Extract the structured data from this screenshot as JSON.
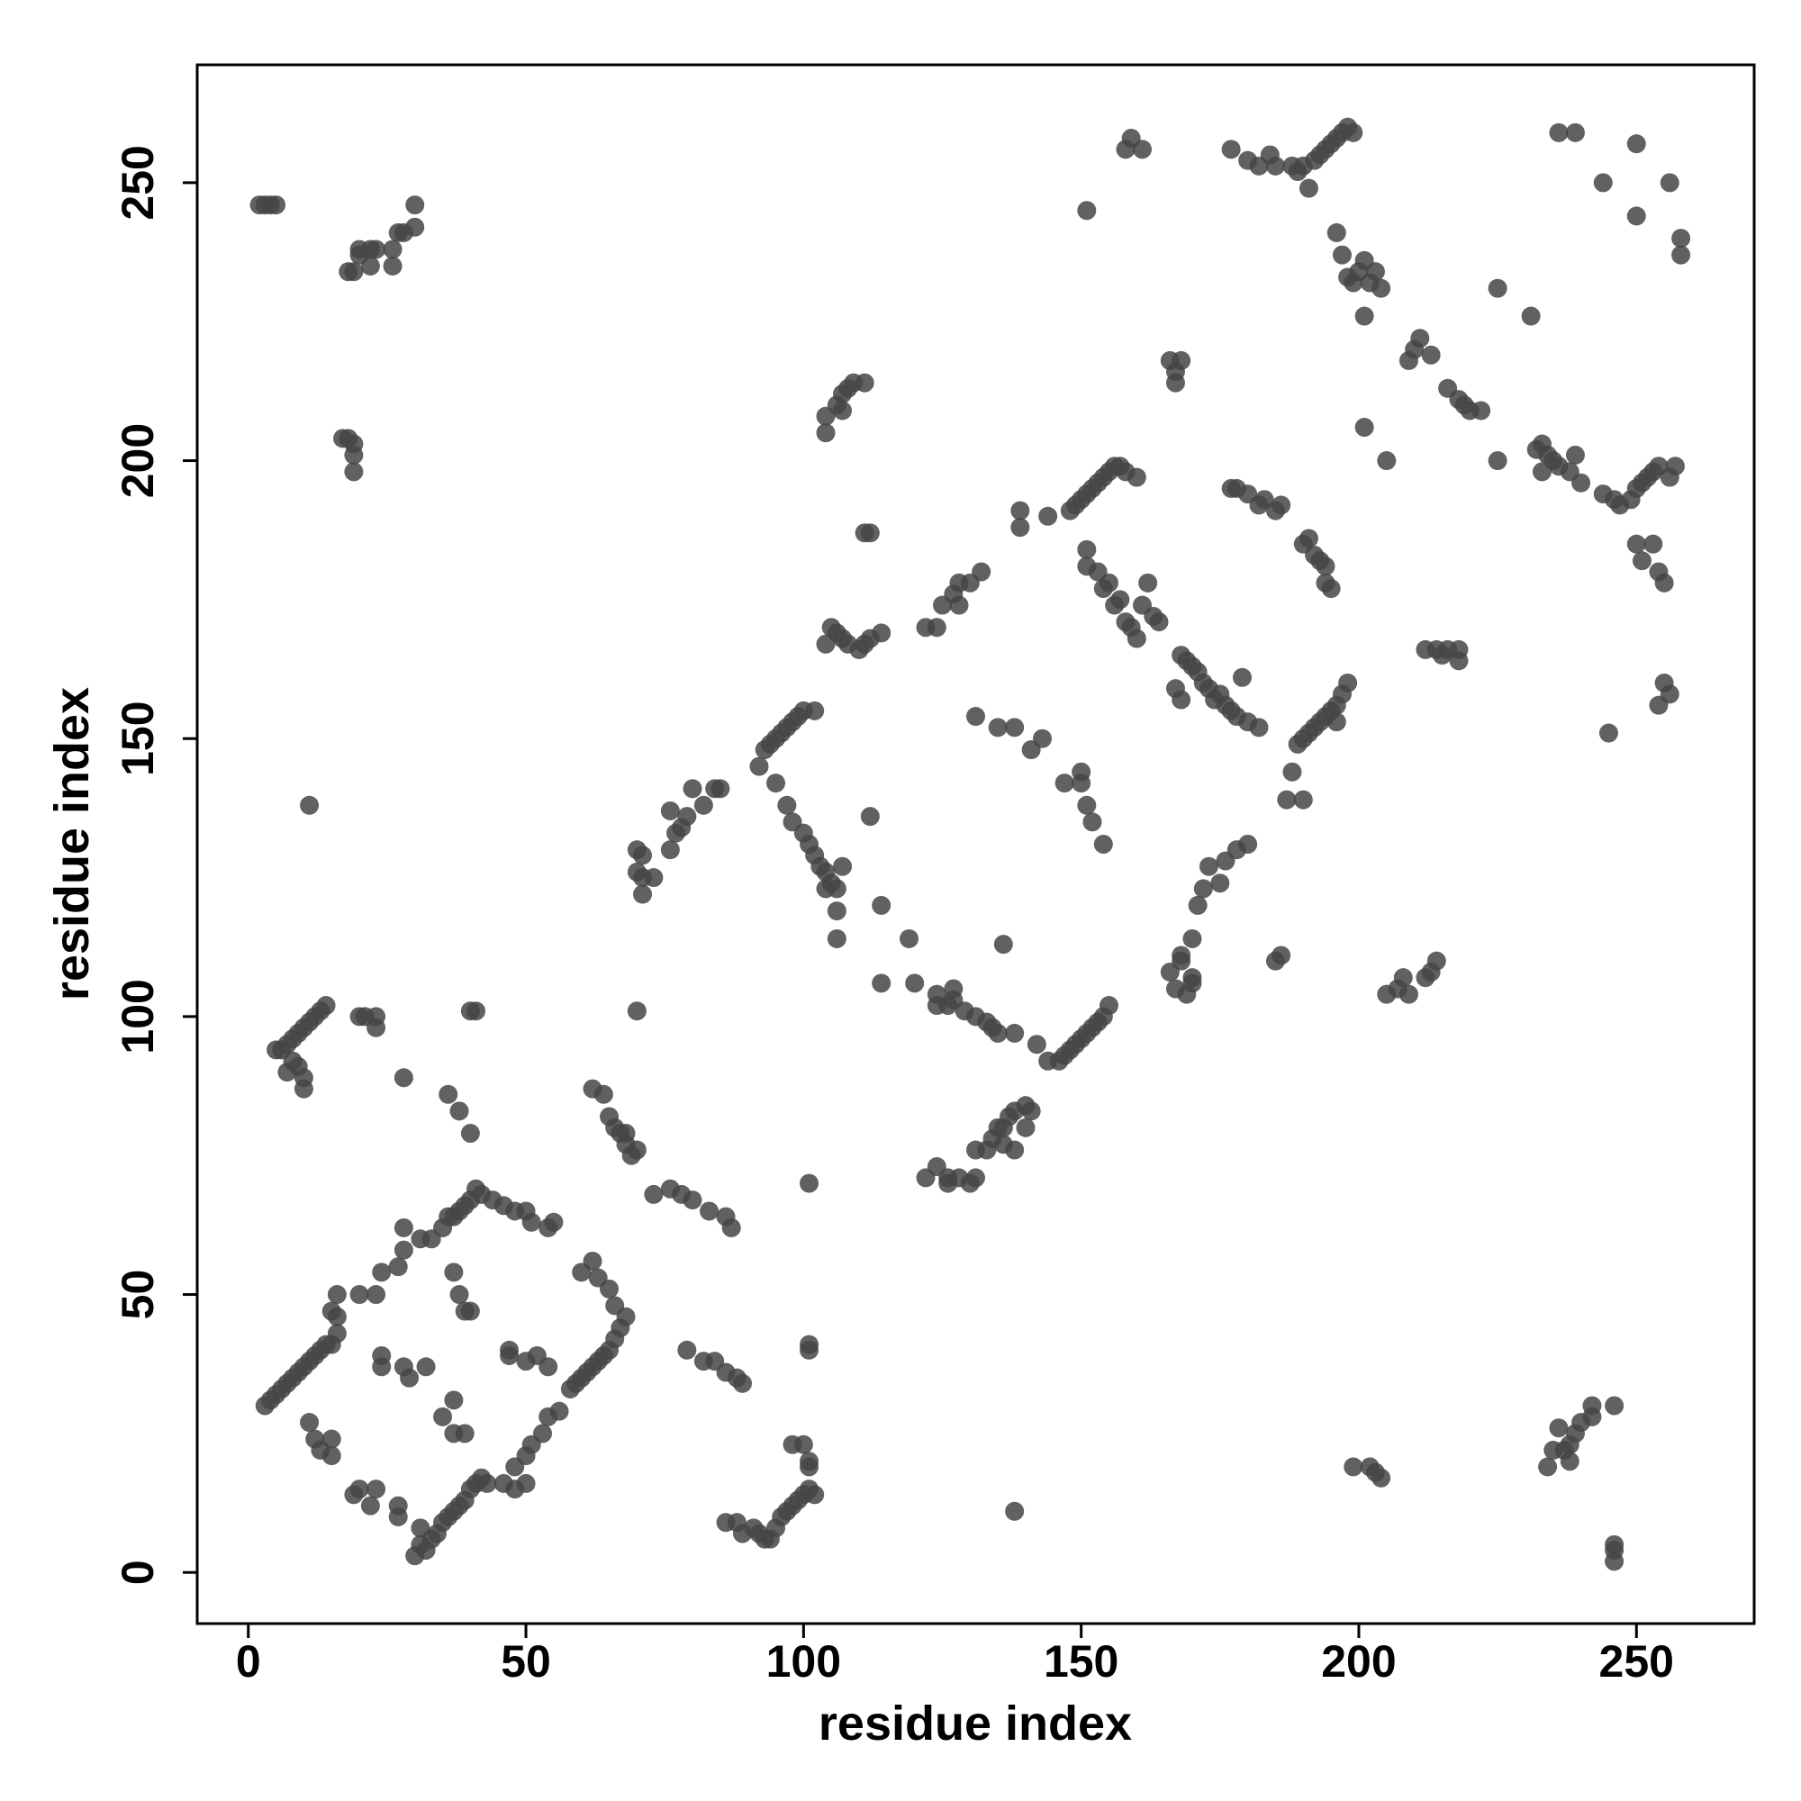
{
  "chart_data": {
    "type": "scatter",
    "x_label": "residue index",
    "y_label": "residue index",
    "color": "#454545",
    "xlim": [
      -9.2,
      271.2
    ],
    "ylim": [
      -9.2,
      271.2
    ],
    "xticks": [
      0,
      50,
      100,
      150,
      200,
      250
    ],
    "yticks": [
      0,
      50,
      100,
      150,
      200,
      250
    ],
    "grid": false,
    "x": [
      2,
      3,
      4,
      5,
      18,
      19,
      20,
      20,
      22,
      22,
      23,
      26,
      26,
      27,
      28,
      30,
      30,
      17,
      18,
      19,
      19,
      19,
      11,
      20,
      21,
      23,
      23,
      14,
      13,
      12,
      11,
      10,
      9,
      8,
      7,
      6,
      5,
      8,
      9,
      10,
      10,
      7,
      3,
      4,
      5,
      6,
      7,
      8,
      9,
      10,
      11,
      12,
      13,
      14,
      15,
      16,
      16,
      16,
      15,
      11,
      12,
      13,
      15,
      15,
      19,
      20,
      22,
      23,
      27,
      27,
      30,
      31,
      31,
      32,
      33,
      34,
      35,
      36,
      37,
      38,
      39,
      40,
      41,
      42,
      43,
      46,
      48,
      50,
      50,
      51,
      53,
      54,
      56,
      58,
      59,
      60,
      61,
      62,
      63,
      64,
      65,
      66,
      67,
      68,
      66,
      65,
      63,
      62,
      60,
      20,
      23,
      24,
      27,
      28,
      28,
      31,
      33,
      35,
      36,
      37,
      38,
      39,
      40,
      41,
      42,
      44,
      46,
      48,
      50,
      51,
      54,
      55,
      24,
      24,
      28,
      29,
      32,
      35,
      37,
      37,
      39,
      37,
      38,
      39,
      40,
      47,
      47,
      50,
      52,
      54,
      48,
      28,
      36,
      38,
      40,
      40,
      41,
      62,
      64,
      65,
      66,
      67,
      68,
      69,
      68,
      70,
      73,
      76,
      78,
      80,
      83,
      86,
      87,
      79,
      82,
      84,
      86,
      88,
      89,
      101,
      101,
      70,
      101,
      86,
      88,
      89,
      91,
      92,
      93,
      94,
      95,
      96,
      97,
      98,
      99,
      100,
      101,
      102,
      98,
      100,
      101,
      101,
      138,
      70,
      71,
      70,
      71,
      73,
      71,
      76,
      77,
      76,
      78,
      79,
      80,
      82,
      84,
      85,
      92,
      93,
      94,
      95,
      96,
      97,
      98,
      99,
      100,
      102,
      95,
      97,
      98,
      100,
      101,
      102,
      103,
      104,
      105,
      106,
      106,
      106,
      104,
      107,
      104,
      105,
      106,
      107,
      108,
      110,
      111,
      112,
      114,
      104,
      104,
      106,
      107,
      108,
      109,
      111,
      111,
      112,
      107,
      112,
      114,
      114,
      119,
      120,
      122,
      124,
      125,
      127,
      128,
      130,
      132,
      128,
      122,
      124,
      126,
      126,
      128,
      130,
      131,
      131,
      133,
      134,
      135,
      136,
      137,
      138,
      140,
      141,
      140,
      136,
      138,
      124,
      124,
      126,
      127,
      127,
      129,
      131,
      133,
      134,
      135,
      138,
      142,
      144,
      146,
      147,
      148,
      149,
      150,
      151,
      152,
      153,
      154,
      155,
      136,
      131,
      135,
      138,
      141,
      143,
      147,
      150,
      150,
      151,
      152,
      154,
      139,
      139,
      144,
      148,
      149,
      150,
      151,
      152,
      153,
      154,
      155,
      156,
      157,
      158,
      160,
      158,
      159,
      161,
      151,
      151,
      151,
      153,
      154,
      155,
      156,
      157,
      158,
      159,
      160,
      161,
      162,
      163,
      164,
      166,
      167,
      167,
      168,
      168,
      169,
      170,
      171,
      172,
      173,
      174,
      175,
      176,
      177,
      178,
      180,
      182,
      167,
      168,
      179,
      166,
      167,
      168,
      169,
      170,
      170,
      171,
      172,
      173,
      175,
      176,
      178,
      180,
      168,
      170,
      185,
      186,
      187,
      190,
      188,
      189,
      190,
      191,
      192,
      193,
      194,
      195,
      196,
      197,
      198,
      196,
      177,
      178,
      180,
      182,
      183,
      185,
      186,
      190,
      191,
      192,
      193,
      194,
      195,
      194,
      177,
      180,
      182,
      184,
      185,
      188,
      189,
      190,
      191,
      192,
      193,
      194,
      195,
      196,
      197,
      198,
      199,
      196,
      197,
      198,
      199,
      200,
      201,
      202,
      203,
      204,
      201,
      201,
      205,
      205,
      207,
      208,
      209,
      212,
      213,
      214,
      212,
      214,
      215,
      216,
      218,
      218,
      209,
      210,
      211,
      213,
      216,
      218,
      219,
      220,
      222,
      225,
      225,
      231,
      199,
      202,
      203,
      204,
      234,
      235,
      236,
      237,
      238,
      239,
      240,
      242,
      242,
      246,
      246,
      246,
      246,
      238,
      232,
      233,
      234,
      235,
      236,
      238,
      239,
      240,
      244,
      246,
      247,
      249,
      250,
      251,
      252,
      253,
      254,
      256,
      257,
      250,
      251,
      253,
      254,
      255,
      244,
      245,
      250,
      250,
      254,
      255,
      256,
      256,
      258,
      258,
      239,
      236,
      233
    ],
    "values": [
      246,
      246,
      246,
      246,
      234,
      234,
      237,
      238,
      235,
      238,
      238,
      235,
      238,
      241,
      241,
      242,
      246,
      204,
      204,
      203,
      201,
      198,
      138,
      100,
      100,
      100,
      98,
      102,
      101,
      100,
      99,
      98,
      97,
      96,
      95,
      94,
      94,
      92,
      91,
      89,
      87,
      90,
      30,
      31,
      32,
      33,
      34,
      35,
      36,
      37,
      38,
      39,
      40,
      41,
      41,
      43,
      46,
      50,
      47,
      27,
      24,
      22,
      21,
      24,
      14,
      15,
      12,
      15,
      10,
      12,
      3,
      5,
      8,
      4,
      6,
      7,
      9,
      10,
      11,
      12,
      13,
      15,
      16,
      17,
      16,
      16,
      15,
      16,
      21,
      23,
      25,
      28,
      29,
      33,
      34,
      35,
      36,
      37,
      38,
      39,
      40,
      42,
      44,
      46,
      48,
      51,
      53,
      56,
      54,
      50,
      50,
      54,
      55,
      58,
      62,
      60,
      60,
      62,
      64,
      64,
      65,
      66,
      67,
      69,
      68,
      67,
      66,
      65,
      65,
      63,
      62,
      63,
      37,
      39,
      37,
      35,
      37,
      28,
      25,
      31,
      25,
      54,
      50,
      47,
      47,
      40,
      39,
      38,
      39,
      37,
      19,
      89,
      86,
      83,
      79,
      101,
      101,
      87,
      86,
      82,
      80,
      79,
      77,
      75,
      79,
      76,
      68,
      69,
      68,
      67,
      65,
      64,
      62,
      40,
      38,
      38,
      36,
      35,
      34,
      40,
      41,
      101,
      70,
      9,
      9,
      7,
      8,
      7,
      6,
      6,
      8,
      10,
      11,
      12,
      13,
      14,
      15,
      14,
      23,
      23,
      19,
      20,
      11,
      130,
      129,
      126,
      125,
      125,
      122,
      130,
      133,
      137,
      134,
      136,
      141,
      138,
      141,
      141,
      145,
      148,
      149,
      150,
      151,
      152,
      153,
      154,
      155,
      155,
      142,
      138,
      135,
      133,
      131,
      129,
      127,
      126,
      124,
      123,
      119,
      114,
      123,
      127,
      167,
      170,
      169,
      168,
      167,
      166,
      167,
      168,
      169,
      205,
      208,
      210,
      212,
      213,
      214,
      214,
      187,
      187,
      209,
      136,
      120,
      106,
      114,
      106,
      170,
      170,
      174,
      176,
      178,
      178,
      180,
      174,
      71,
      73,
      70,
      71,
      71,
      70,
      71,
      76,
      76,
      78,
      80,
      80,
      82,
      83,
      84,
      83,
      80,
      77,
      76,
      104,
      102,
      102,
      103,
      105,
      101,
      100,
      99,
      98,
      97,
      97,
      95,
      92,
      92,
      93,
      94,
      95,
      96,
      97,
      98,
      99,
      100,
      102,
      113,
      154,
      152,
      152,
      148,
      150,
      142,
      144,
      142,
      138,
      135,
      131,
      191,
      188,
      190,
      191,
      192,
      193,
      194,
      195,
      196,
      197,
      198,
      199,
      199,
      198,
      197,
      256,
      258,
      256,
      245,
      184,
      181,
      180,
      177,
      178,
      174,
      175,
      171,
      170,
      168,
      174,
      178,
      172,
      171,
      218,
      216,
      214,
      218,
      165,
      164,
      163,
      162,
      160,
      159,
      157,
      158,
      156,
      155,
      154,
      153,
      152,
      159,
      157,
      161,
      108,
      105,
      110,
      104,
      106,
      114,
      120,
      123,
      127,
      124,
      128,
      130,
      131,
      111,
      107,
      110,
      111,
      139,
      139,
      144,
      149,
      150,
      151,
      152,
      153,
      154,
      155,
      156,
      158,
      160,
      153,
      195,
      195,
      194,
      192,
      193,
      191,
      192,
      185,
      186,
      183,
      182,
      181,
      177,
      178,
      256,
      254,
      253,
      255,
      253,
      253,
      252,
      253,
      249,
      254,
      255,
      256,
      257,
      258,
      259,
      260,
      259,
      241,
      237,
      233,
      232,
      234,
      236,
      232,
      234,
      231,
      226,
      206,
      200,
      104,
      105,
      107,
      104,
      107,
      108,
      110,
      166,
      166,
      165,
      166,
      164,
      166,
      218,
      220,
      222,
      219,
      213,
      211,
      210,
      209,
      209,
      200,
      231,
      226,
      19,
      19,
      18,
      17,
      19,
      22,
      26,
      22,
      23,
      25,
      27,
      28,
      30,
      30,
      5,
      4,
      2,
      20,
      202,
      203,
      201,
      200,
      199,
      198,
      201,
      196,
      194,
      193,
      192,
      193,
      195,
      196,
      197,
      198,
      199,
      197,
      199,
      185,
      182,
      185,
      180,
      178,
      250,
      151,
      244,
      257,
      156,
      160,
      158,
      250,
      240,
      237,
      259,
      259,
      198
    ]
  }
}
